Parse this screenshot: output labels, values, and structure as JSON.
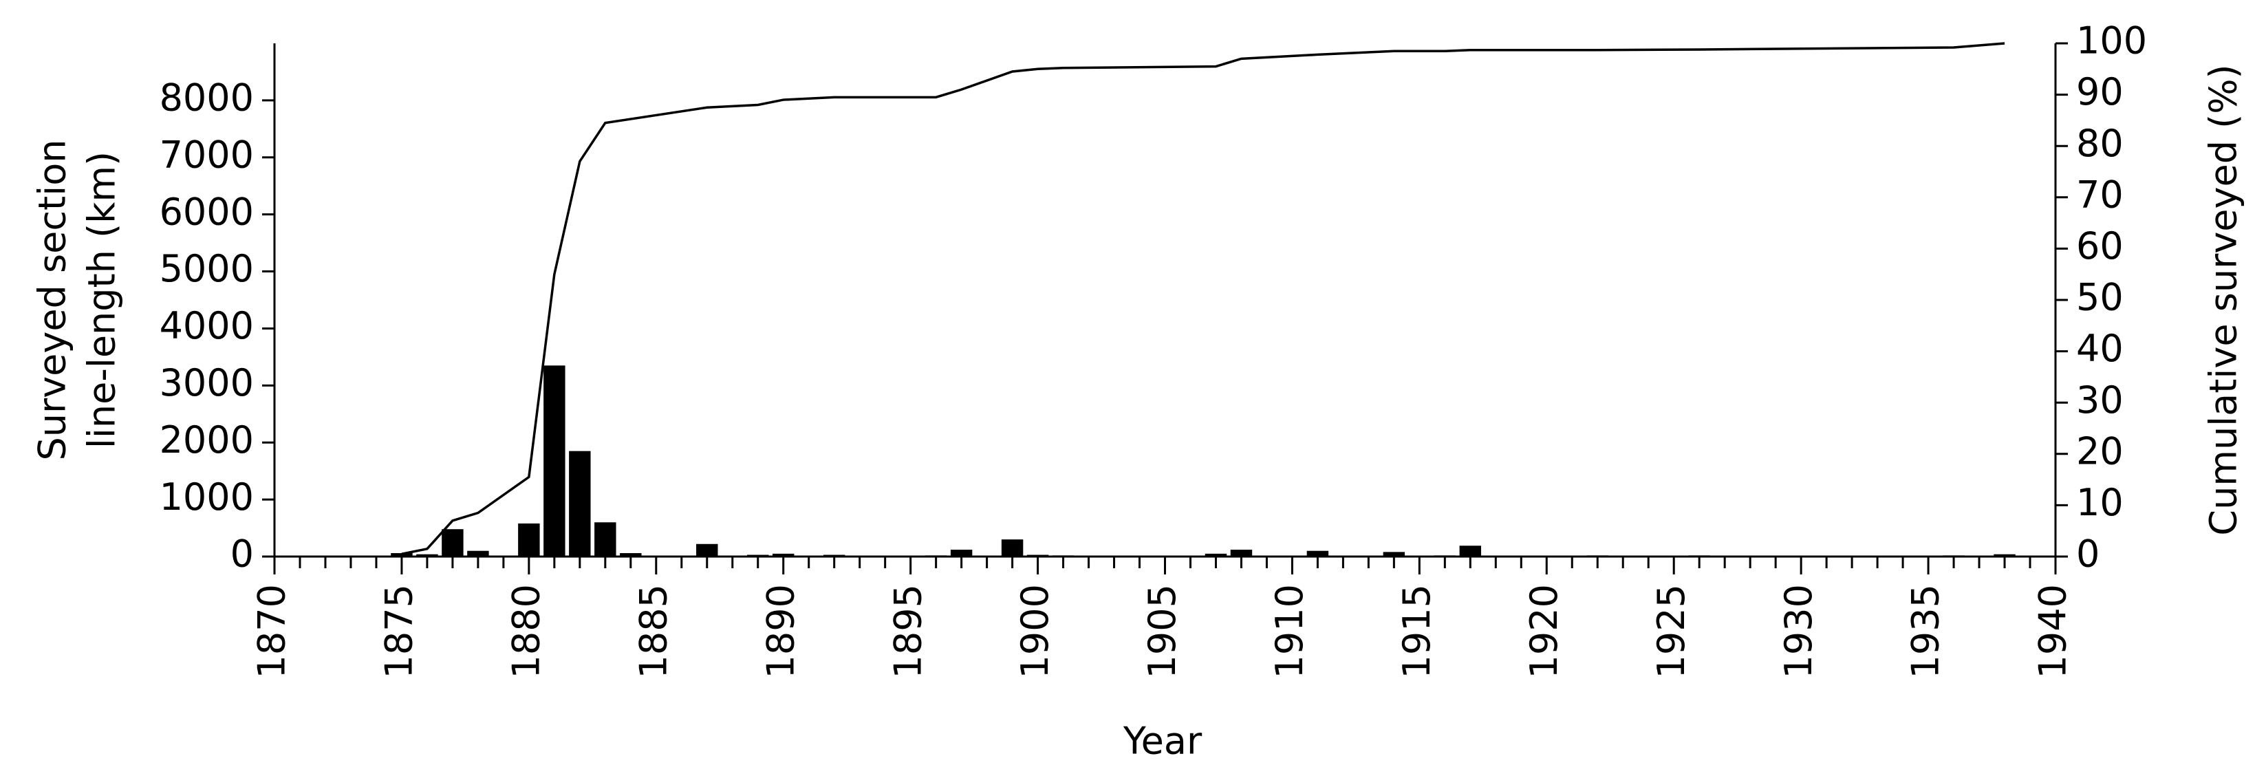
{
  "chart_data": {
    "type": "bar",
    "xlabel": "Year",
    "ylabel": [
      "Surveyed section",
      "line-length (km)"
    ],
    "y2label": "Cumulative surveyed (%)",
    "xlim": [
      1870,
      1940
    ],
    "xticks": [
      1870,
      1875,
      1880,
      1885,
      1890,
      1895,
      1900,
      1905,
      1910,
      1915,
      1920,
      1925,
      1930,
      1935,
      1940
    ],
    "xminorticks": [
      1871,
      1872,
      1873,
      1874,
      1876,
      1877,
      1878,
      1879,
      1881,
      1882,
      1883,
      1884,
      1886,
      1887,
      1888,
      1889,
      1891,
      1892,
      1893,
      1894,
      1896,
      1897,
      1898,
      1899,
      1901,
      1902,
      1903,
      1904,
      1906,
      1907,
      1908,
      1909,
      1911,
      1912,
      1913,
      1914,
      1916,
      1917,
      1918,
      1919,
      1921,
      1922,
      1923,
      1924,
      1926,
      1927,
      1928,
      1929,
      1931,
      1932,
      1933,
      1934,
      1936,
      1937,
      1938,
      1939
    ],
    "ylim": [
      0,
      9000
    ],
    "yticks": [
      0,
      1000,
      2000,
      3000,
      4000,
      5000,
      6000,
      7000,
      8000
    ],
    "y2lim": [
      0,
      100
    ],
    "y2ticks": [
      0,
      10,
      20,
      30,
      40,
      50,
      60,
      70,
      80,
      90,
      100
    ],
    "series": [
      {
        "type": "bar",
        "color": "#000000",
        "x": [
          1875,
          1876,
          1877,
          1878,
          1880,
          1881,
          1882,
          1883,
          1884,
          1887,
          1889,
          1890,
          1892,
          1896,
          1897,
          1899,
          1900,
          1901,
          1907,
          1908,
          1911,
          1914,
          1916,
          1917,
          1922,
          1926,
          1936,
          1938
        ],
        "values": [
          60,
          40,
          480,
          100,
          580,
          3350,
          1850,
          600,
          60,
          220,
          30,
          50,
          30,
          20,
          120,
          300,
          30,
          20,
          50,
          120,
          100,
          80,
          20,
          190,
          20,
          20,
          20,
          40
        ]
      },
      {
        "type": "line",
        "axis": "y2",
        "color": "#000000",
        "x": [
          1875,
          1876,
          1877,
          1878,
          1880,
          1881,
          1882,
          1883,
          1887,
          1889,
          1890,
          1892,
          1896,
          1897,
          1899,
          1900,
          1901,
          1907,
          1908,
          1911,
          1914,
          1916,
          1917,
          1922,
          1926,
          1936,
          1938
        ],
        "values": [
          0.5,
          1.5,
          7,
          8.5,
          15.5,
          55,
          77,
          84.5,
          87.5,
          88,
          89,
          89.5,
          89.5,
          91,
          94.5,
          95,
          95.2,
          95.5,
          97,
          97.8,
          98.5,
          98.5,
          98.7,
          98.7,
          98.8,
          99.2,
          100
        ]
      }
    ]
  }
}
